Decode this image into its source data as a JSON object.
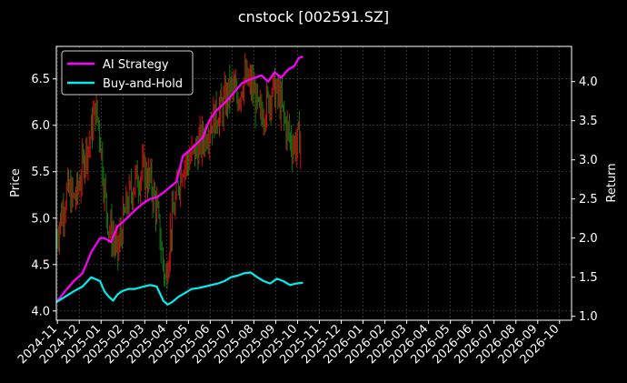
{
  "chart_data": {
    "type": "line",
    "title": "cnstock [002591.SZ]",
    "ylabel_left": "Price",
    "ylabel_right": "Return",
    "x_ticks": [
      "2024-11",
      "2024-12",
      "2025-01",
      "2025-02",
      "2025-03",
      "2025-04",
      "2025-05",
      "2025-06",
      "2025-07",
      "2025-08",
      "2025-09",
      "2025-10",
      "2025-11",
      "2025-12",
      "2026-01",
      "2026-02",
      "2026-03",
      "2026-04",
      "2026-05",
      "2026-06",
      "2026-07",
      "2026-08",
      "2026-09",
      "2026-10"
    ],
    "y_left_ticks": [
      "4.0",
      "4.5",
      "5.0",
      "5.5",
      "6.0",
      "6.5"
    ],
    "y_right_ticks": [
      "1.0",
      "1.5",
      "2.0",
      "2.5",
      "3.0",
      "3.5",
      "4.0"
    ],
    "y_left_range": [
      3.9,
      6.85
    ],
    "y_right_range": [
      0.95,
      4.45
    ],
    "x_range_months": [
      0,
      23.6
    ],
    "grid": true,
    "legend_position": "top-left",
    "candle_colors": {
      "up": "#cc1111",
      "down": "#117711"
    },
    "price_series": {
      "months": [
        0,
        0.3,
        0.5,
        0.8,
        1.0,
        1.3,
        1.5,
        1.8,
        2.0,
        2.2,
        2.4,
        2.6,
        2.8,
        3.0,
        3.3,
        3.6,
        4.0,
        4.3,
        4.6,
        5.0,
        5.2,
        5.4,
        5.6,
        5.8,
        6.0,
        6.3,
        6.6,
        7.0,
        7.3,
        7.6,
        8.0,
        8.3,
        8.6,
        9.0,
        9.3,
        9.6,
        9.9,
        10.2,
        10.5,
        10.8,
        11.0,
        11.2
      ],
      "values": [
        4.8,
        5.1,
        5.3,
        5.2,
        5.3,
        5.7,
        5.8,
        6.2,
        5.9,
        5.3,
        4.9,
        4.8,
        4.6,
        4.9,
        5.2,
        5.4,
        5.5,
        5.4,
        5.1,
        4.3,
        4.8,
        5.1,
        5.4,
        5.6,
        5.6,
        5.7,
        5.8,
        6.0,
        6.1,
        6.2,
        6.4,
        6.3,
        6.5,
        6.4,
        6.1,
        6.2,
        6.4,
        6.3,
        6.0,
        5.8,
        5.8,
        5.9
      ]
    },
    "series": [
      {
        "name": "AI Strategy",
        "color": "#ff00ff",
        "months": [
          0,
          0.4,
          0.8,
          1.2,
          1.6,
          2.0,
          2.2,
          2.5,
          2.8,
          3.1,
          3.4,
          3.7,
          4.0,
          4.3,
          4.6,
          4.9,
          5.2,
          5.5,
          5.8,
          6.1,
          6.4,
          6.7,
          7.0,
          7.3,
          7.6,
          7.9,
          8.2,
          8.5,
          8.8,
          9.1,
          9.4,
          9.7,
          10.0,
          10.3,
          10.6,
          10.9,
          11.1,
          11.3
        ],
        "values": [
          1.18,
          1.32,
          1.45,
          1.55,
          1.82,
          2.0,
          2.0,
          1.95,
          2.15,
          2.22,
          2.3,
          2.38,
          2.45,
          2.5,
          2.52,
          2.58,
          2.65,
          2.72,
          3.05,
          3.12,
          3.2,
          3.28,
          3.5,
          3.62,
          3.7,
          3.78,
          3.88,
          3.98,
          4.02,
          4.05,
          4.08,
          4.0,
          4.12,
          4.05,
          4.15,
          4.2,
          4.3,
          4.32
        ]
      },
      {
        "name": "Buy-and-Hold",
        "color": "#00eeee",
        "months": [
          0,
          0.4,
          0.8,
          1.2,
          1.6,
          2.0,
          2.2,
          2.4,
          2.6,
          2.8,
          3.0,
          3.3,
          3.6,
          4.0,
          4.3,
          4.6,
          4.9,
          5.1,
          5.3,
          5.6,
          5.9,
          6.2,
          6.5,
          6.8,
          7.1,
          7.4,
          7.7,
          8.0,
          8.3,
          8.6,
          8.9,
          9.2,
          9.5,
          9.8,
          10.1,
          10.4,
          10.7,
          11.0,
          11.3
        ],
        "values": [
          1.18,
          1.25,
          1.32,
          1.38,
          1.5,
          1.45,
          1.32,
          1.25,
          1.2,
          1.28,
          1.32,
          1.35,
          1.35,
          1.38,
          1.4,
          1.38,
          1.2,
          1.15,
          1.18,
          1.25,
          1.3,
          1.35,
          1.36,
          1.38,
          1.4,
          1.42,
          1.45,
          1.5,
          1.52,
          1.55,
          1.56,
          1.5,
          1.45,
          1.42,
          1.48,
          1.45,
          1.4,
          1.42,
          1.43
        ]
      }
    ]
  }
}
